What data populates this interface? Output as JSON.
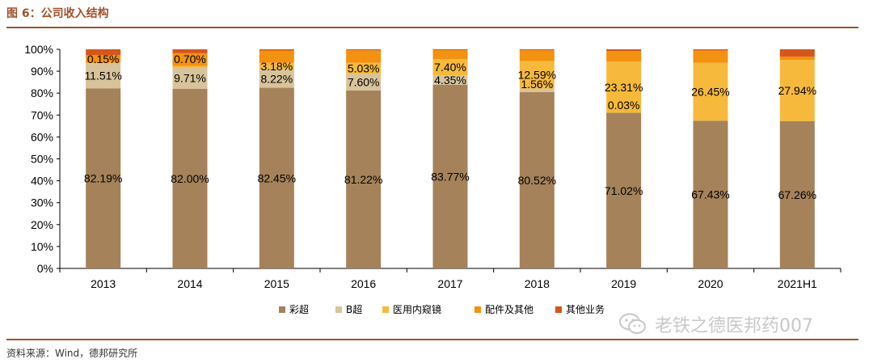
{
  "header": {
    "title": "图 6：公司收入结构"
  },
  "footer": {
    "source": "资料来源：Wind，德邦研究所"
  },
  "watermark": {
    "text": "老铁之德医邦药007"
  },
  "chart_data": {
    "type": "bar",
    "stacked": true,
    "categories": [
      "2013",
      "2014",
      "2015",
      "2016",
      "2017",
      "2018",
      "2019",
      "2020",
      "2021H1"
    ],
    "ylim": [
      0,
      100
    ],
    "yticks": [
      "0%",
      "10%",
      "20%",
      "30%",
      "40%",
      "50%",
      "60%",
      "70%",
      "80%",
      "90%",
      "100%"
    ],
    "series": [
      {
        "name": "彩超",
        "color": "#a5825a",
        "values": [
          82.19,
          82.0,
          82.45,
          81.22,
          83.77,
          80.52,
          71.02,
          67.43,
          67.26
        ],
        "labels": [
          "82.19%",
          "82.00%",
          "82.45%",
          "81.22%",
          "83.77%",
          "80.52%",
          "71.02%",
          "67.43%",
          "67.26%"
        ]
      },
      {
        "name": "B超",
        "color": "#d8c39a",
        "values": [
          11.51,
          9.71,
          8.22,
          7.6,
          4.35,
          1.56,
          0.03,
          0,
          0
        ],
        "labels": [
          "11.51%",
          "9.71%",
          "8.22%",
          "7.60%",
          "4.35%",
          "1.56%",
          "0.03%",
          "",
          ""
        ]
      },
      {
        "name": "医用内窥镜",
        "color": "#f6b93b",
        "values": [
          0.15,
          0.7,
          3.18,
          5.03,
          7.4,
          12.59,
          23.31,
          26.45,
          27.94
        ],
        "labels": [
          "0.15%",
          "0.70%",
          "3.18%",
          "5.03%",
          "7.40%",
          "12.59%",
          "23.31%",
          "26.45%",
          "27.94%"
        ]
      },
      {
        "name": "配件及其他",
        "color": "#f39110",
        "values": [
          3.5,
          5.8,
          5.6,
          5.7,
          4.1,
          4.9,
          4.8,
          5.6,
          1.5
        ]
      },
      {
        "name": "其他业务",
        "color": "#d4561a",
        "values": [
          2.65,
          1.79,
          0.55,
          0.45,
          0.38,
          0.43,
          0.84,
          0.52,
          3.3
        ]
      }
    ]
  }
}
